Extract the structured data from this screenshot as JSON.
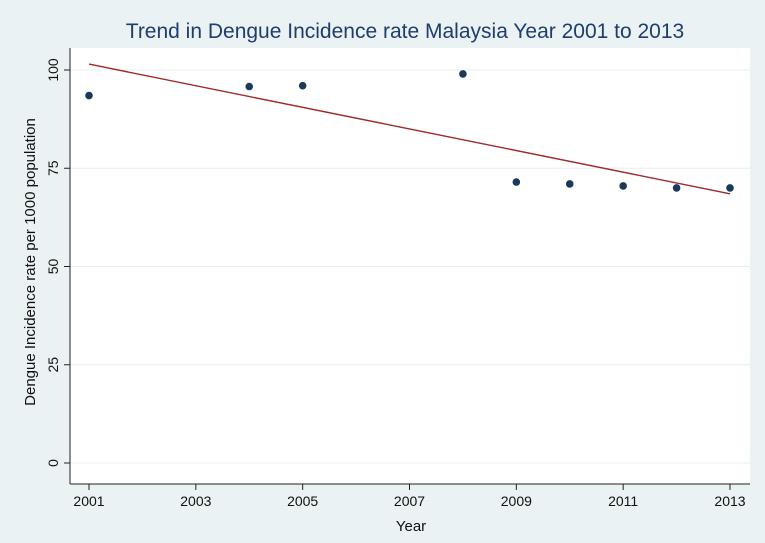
{
  "chart_data": {
    "type": "scatter",
    "title": "Trend in Dengue Incidence rate Malaysia Year 2001 to 2013",
    "xlabel": "Year",
    "ylabel": "Dengue Incidence rate per 1000 population",
    "xlim": [
      2001,
      2013
    ],
    "ylim": [
      0,
      100
    ],
    "x_ticks": [
      2001,
      2003,
      2005,
      2007,
      2009,
      2011,
      2013
    ],
    "y_ticks": [
      0,
      25,
      50,
      75,
      100
    ],
    "grid": true,
    "points": [
      {
        "x": 2001,
        "y": 93.5
      },
      {
        "x": 2004,
        "y": 95.8
      },
      {
        "x": 2005,
        "y": 96.0
      },
      {
        "x": 2008,
        "y": 99.0
      },
      {
        "x": 2009,
        "y": 71.5
      },
      {
        "x": 2010,
        "y": 71.0
      },
      {
        "x": 2011,
        "y": 70.5
      },
      {
        "x": 2012,
        "y": 70.0
      },
      {
        "x": 2013,
        "y": 70.0
      }
    ],
    "fit_line": {
      "x": [
        2001,
        2013
      ],
      "y": [
        101.5,
        68.5
      ]
    },
    "colors": {
      "background": "#eaf2f3",
      "plot_area": "#ffffff",
      "grid": "#e9eef0",
      "points": "#1a3a5c",
      "fit_line": "#9e2a2b",
      "title": "#1f3d6e"
    }
  }
}
